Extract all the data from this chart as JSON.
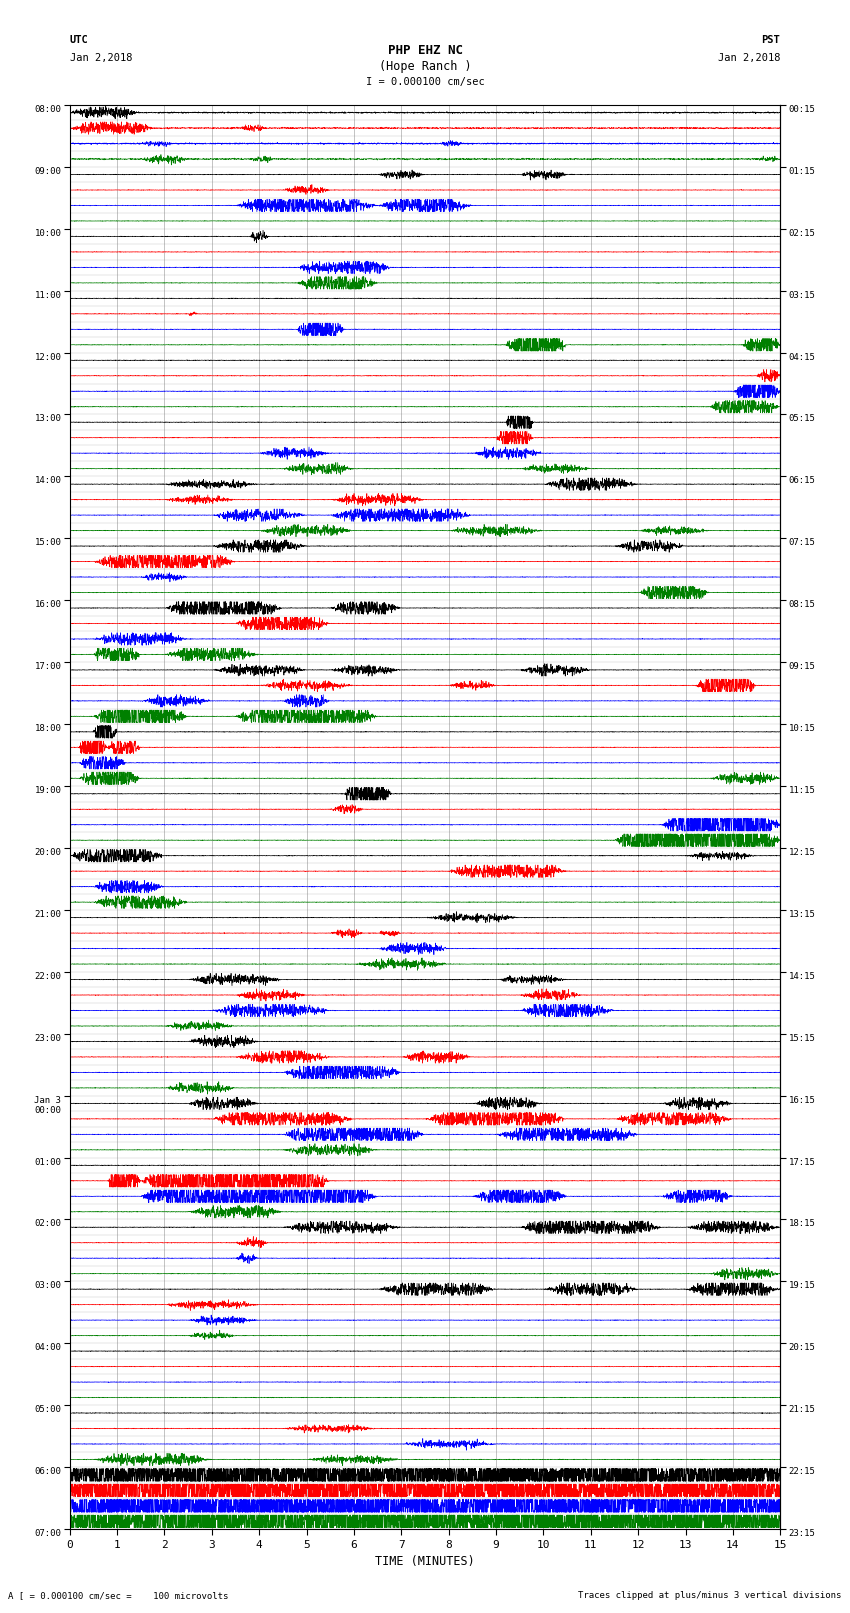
{
  "title_line1": "PHP EHZ NC",
  "title_line2": "(Hope Ranch )",
  "title_line3": "I = 0.000100 cm/sec",
  "left_label_top": "UTC",
  "left_label_date": "Jan 2,2018",
  "right_label_top": "PST",
  "right_label_date": "Jan 2,2018",
  "footer_left": "A [ = 0.000100 cm/sec =    100 microvolts",
  "footer_right": "Traces clipped at plus/minus 3 vertical divisions",
  "xlabel": "TIME (MINUTES)",
  "xmin": 0,
  "xmax": 15,
  "xticks": [
    0,
    1,
    2,
    3,
    4,
    5,
    6,
    7,
    8,
    9,
    10,
    11,
    12,
    13,
    14,
    15
  ],
  "colors": {
    "black": "#000000",
    "red": "#ff0000",
    "blue": "#0000ff",
    "green": "#008000",
    "background": "#ffffff",
    "grid_v": "#888888",
    "grid_h": "#888888"
  },
  "num_rows": 92,
  "seed": 42
}
